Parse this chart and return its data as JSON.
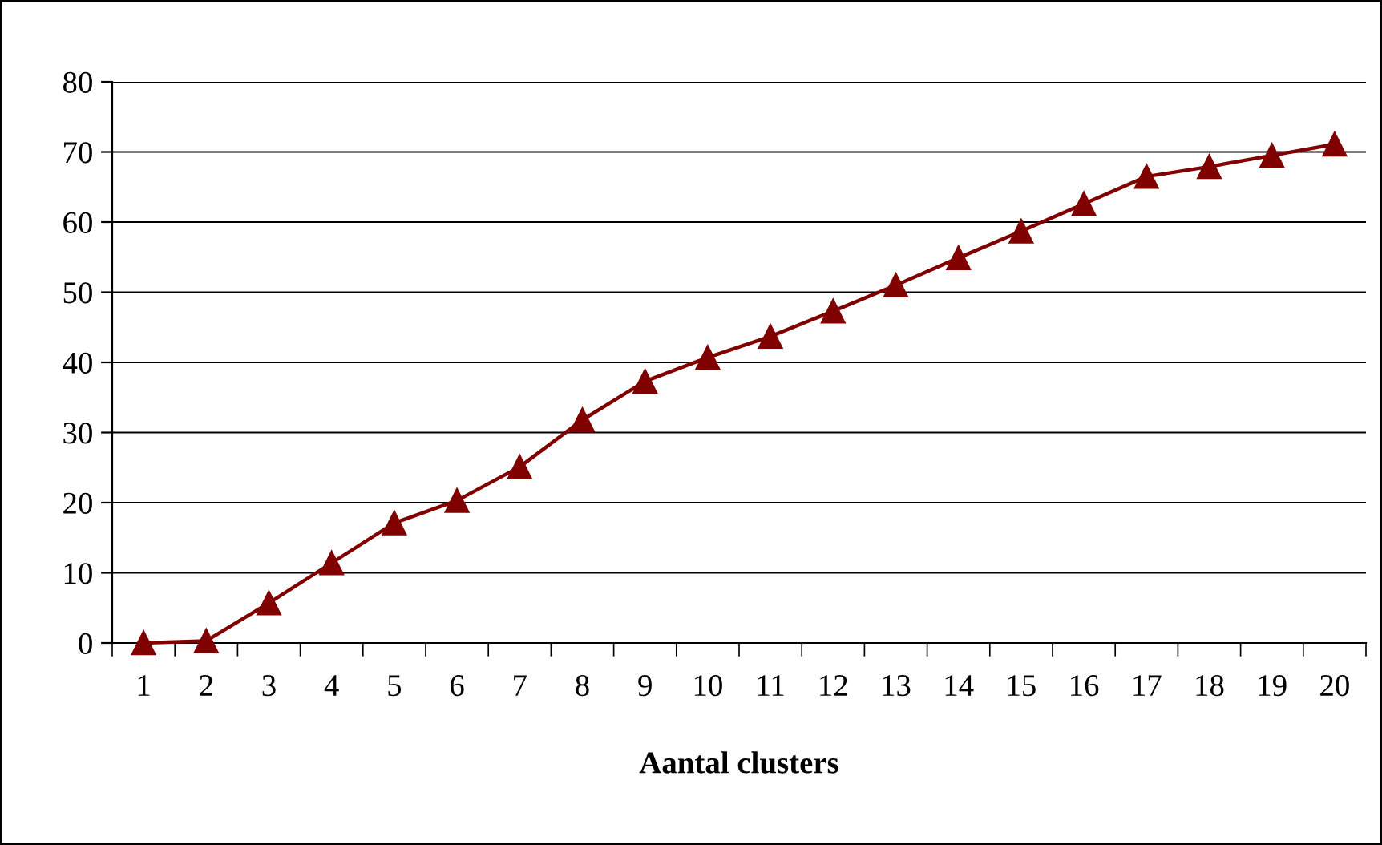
{
  "chart_data": {
    "type": "line",
    "xlabel": "Aantal clusters",
    "categories": [
      "1",
      "2",
      "3",
      "4",
      "5",
      "6",
      "7",
      "8",
      "9",
      "10",
      "11",
      "12",
      "13",
      "14",
      "15",
      "16",
      "17",
      "18",
      "19",
      "20"
    ],
    "series": [
      {
        "color": "#800000",
        "values": [
          0,
          0.3,
          5.7,
          11.4,
          17.1,
          20.3,
          25.1,
          31.8,
          37.3,
          40.7,
          43.7,
          47.3,
          51.0,
          54.9,
          58.7,
          62.6,
          66.5,
          67.9,
          69.5,
          71.1
        ]
      }
    ],
    "ylim": [
      0,
      80
    ],
    "yticks": [
      0,
      10,
      20,
      30,
      40,
      50,
      60,
      70,
      80
    ],
    "grid": "y",
    "marker": "triangle",
    "line_style": "solid",
    "legend": false
  }
}
